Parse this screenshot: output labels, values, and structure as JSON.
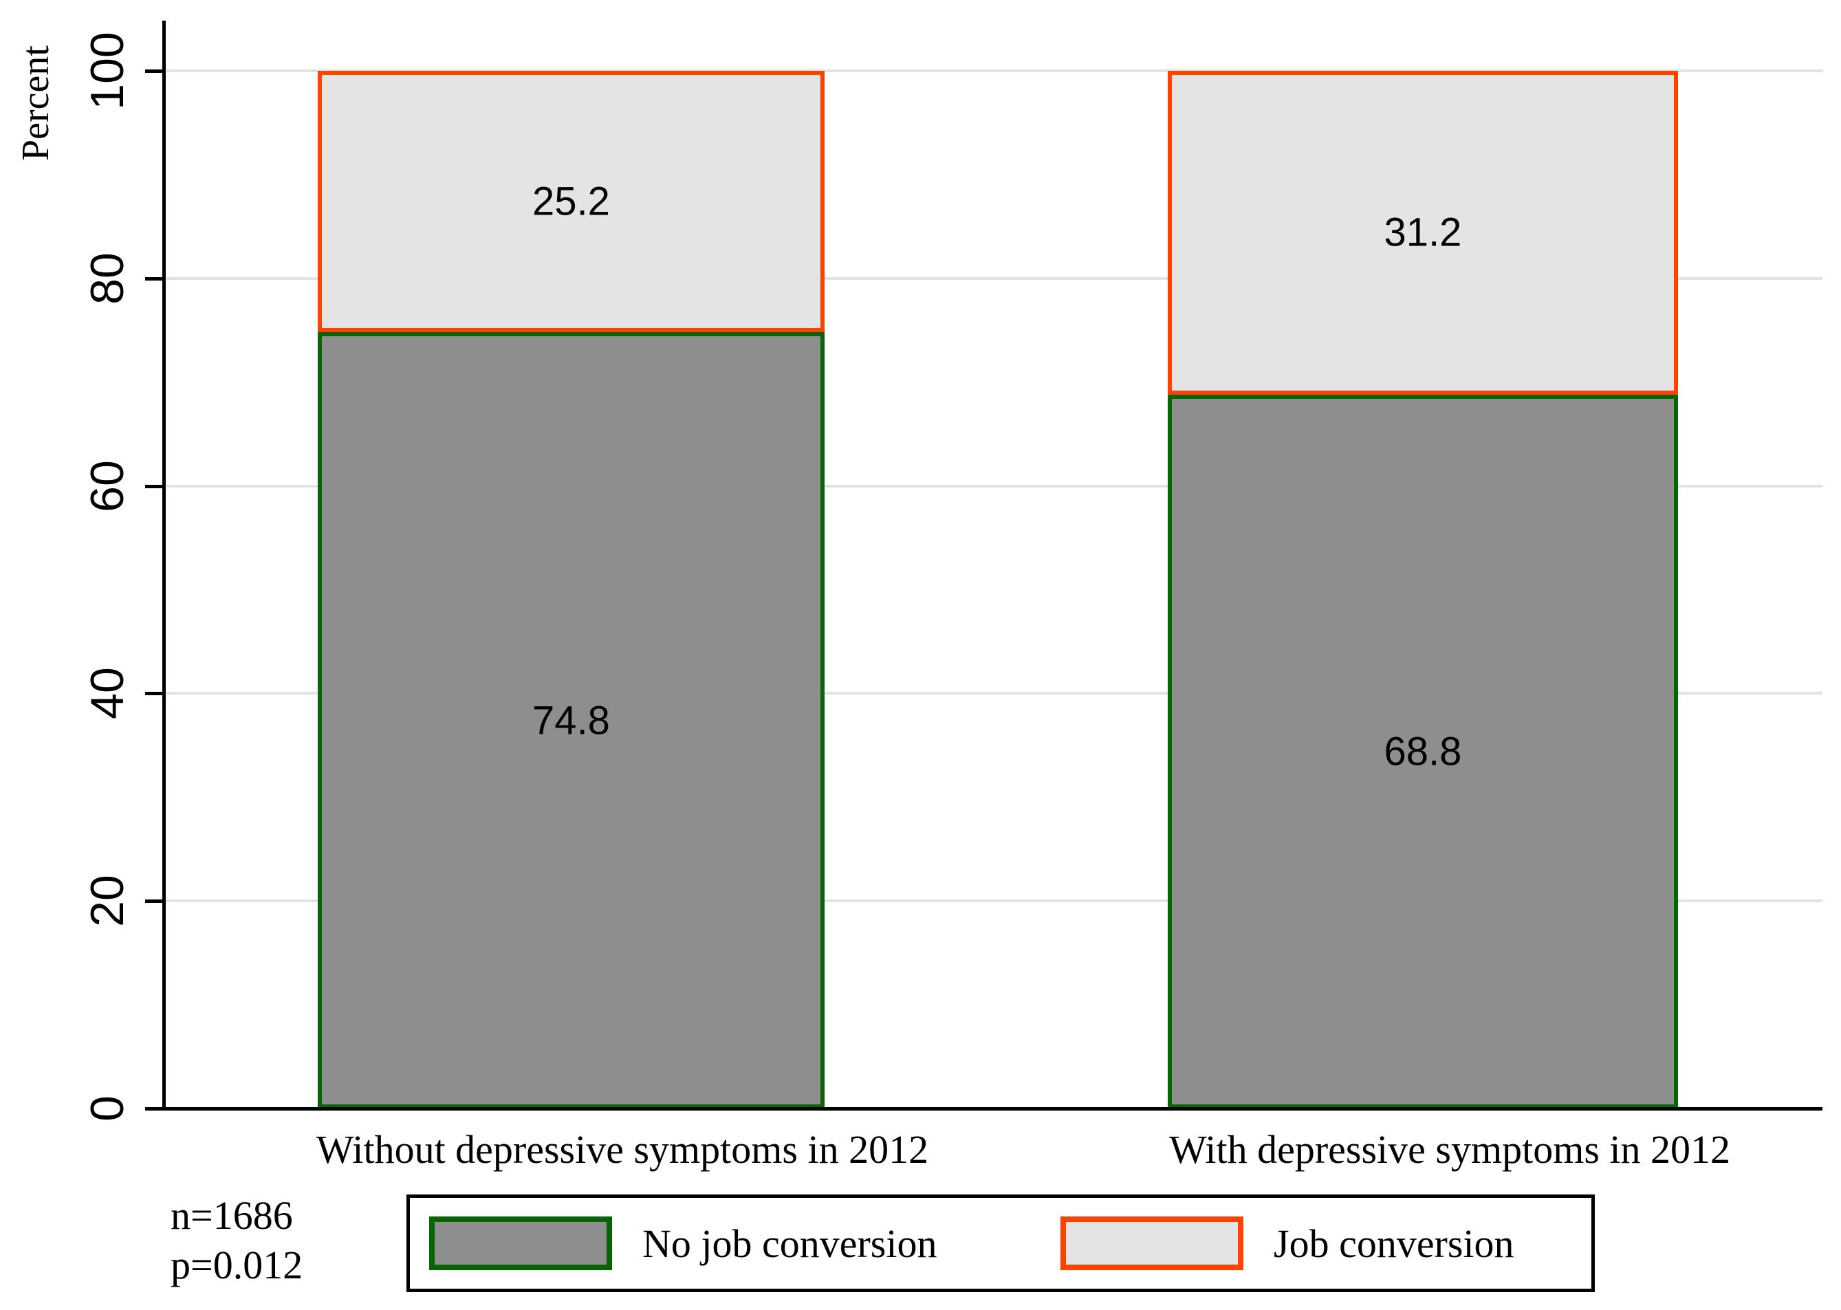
{
  "chart_data": {
    "type": "bar",
    "stacked": true,
    "title": "",
    "ylabel": "Percent",
    "xlabel": "",
    "ylim": [
      0,
      100
    ],
    "yticks": [
      0,
      20,
      40,
      60,
      80,
      100
    ],
    "grid": true,
    "legend_position": "bottom",
    "categories": [
      "Without depressive symptoms in 2012",
      "With depressive symptoms in 2012"
    ],
    "series": [
      {
        "name": "No job conversion",
        "values": [
          74.8,
          68.8
        ],
        "fill": "#8e8e8e",
        "border": "#066606"
      },
      {
        "name": "Job conversion",
        "values": [
          25.2,
          31.2
        ],
        "fill": "#e4e4e4",
        "border": "#fc4400"
      }
    ],
    "value_label_decimals": 1
  },
  "annotations": {
    "sample_size": "n=1686",
    "p_value": "p=0.012"
  },
  "colors": {
    "axis": "#000000",
    "gridline": "#e2e2e2",
    "background": "#ffffff",
    "legend_border": "#000000",
    "text": "#000000"
  }
}
